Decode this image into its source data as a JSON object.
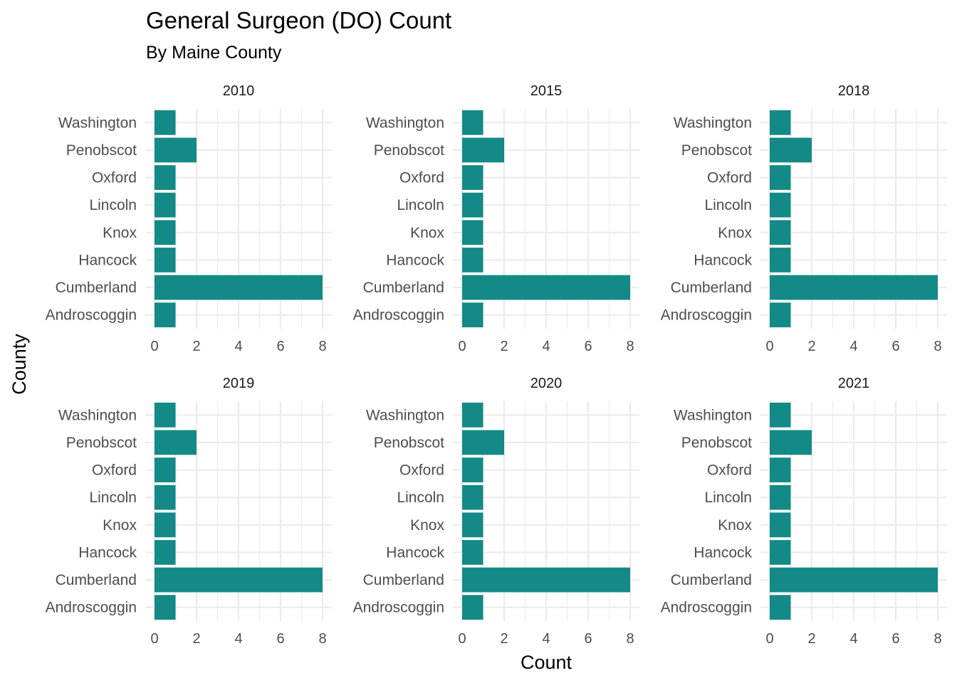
{
  "chart_data": {
    "type": "bar",
    "orientation": "horizontal",
    "title": "General Surgeon (DO) Count",
    "subtitle": "By Maine County",
    "xlabel": "Count",
    "ylabel": "County",
    "xlim": [
      0,
      8
    ],
    "x_ticks": [
      "0",
      "2",
      "4",
      "6",
      "8"
    ],
    "grid": true,
    "bar_color": "#138a87",
    "categories": [
      "Washington",
      "Penobscot",
      "Oxford",
      "Lincoln",
      "Knox",
      "Hancock",
      "Cumberland",
      "Androscoggin"
    ],
    "panels": [
      {
        "label": "2010",
        "values": [
          1,
          2,
          1,
          1,
          1,
          1,
          8,
          1
        ]
      },
      {
        "label": "2015",
        "values": [
          1,
          2,
          1,
          1,
          1,
          1,
          8,
          1
        ]
      },
      {
        "label": "2018",
        "values": [
          1,
          2,
          1,
          1,
          1,
          1,
          8,
          1
        ]
      },
      {
        "label": "2019",
        "values": [
          1,
          2,
          1,
          1,
          1,
          1,
          8,
          1
        ]
      },
      {
        "label": "2020",
        "values": [
          1,
          2,
          1,
          1,
          1,
          1,
          8,
          1
        ]
      },
      {
        "label": "2021",
        "values": [
          1,
          2,
          1,
          1,
          1,
          1,
          8,
          1
        ]
      }
    ]
  }
}
